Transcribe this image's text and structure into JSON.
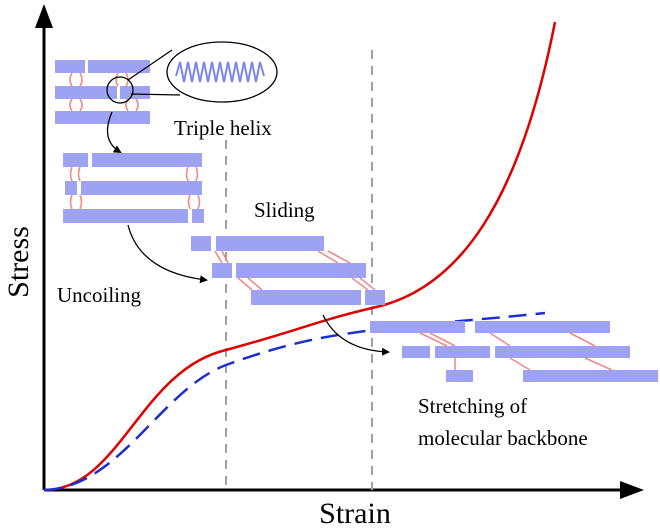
{
  "axes": {
    "y_label": "Stress",
    "x_label": "Strain"
  },
  "stages": {
    "triple_helix": "Triple helix",
    "uncoiling": "Uncoiling",
    "sliding": "Sliding",
    "stretching_line1": "Stretching of",
    "stretching_line2": "molecular backbone"
  },
  "colors": {
    "solid_curve": "#e00000",
    "dashed_curve": "#1a2fd0",
    "guide_lines": "#a0a0a0",
    "molecule_fill": "#9ea2f2",
    "crosslink": "#f08a8a",
    "axes": "#000000"
  },
  "icons": {
    "helix_zoom": "zoom-ellipse-icon",
    "arrows": "curved-arrow-icon"
  }
}
